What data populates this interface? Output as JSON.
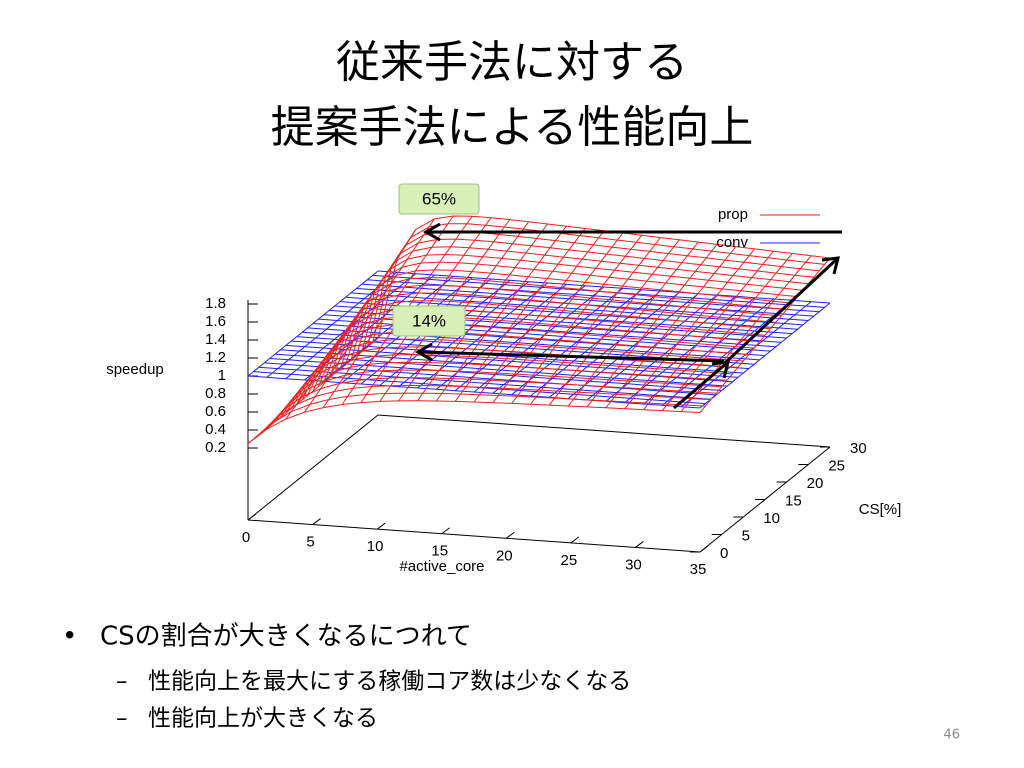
{
  "title": [
    "従来手法に対する",
    "提案手法による性能向上"
  ],
  "plot": {
    "zlabel": "speedup",
    "xlabel": "#active_core",
    "ylabel": "CS[%]",
    "zticks": [
      1.8,
      1.6,
      1.4,
      1.2,
      1,
      0.8,
      0.6,
      0.4,
      0.2
    ],
    "xticks": [
      0,
      5,
      10,
      15,
      20,
      25,
      30,
      35
    ],
    "yticks": [
      0,
      5,
      10,
      15,
      20,
      25,
      30
    ],
    "legend": [
      "prop",
      "conv"
    ],
    "callouts": [
      "65%",
      "14%"
    ]
  },
  "bullets": {
    "text": "CSの割合が大きくなるにつれて",
    "sub": [
      "性能向上を最大にする稼働コア数は少なくなる",
      "性能向上が大きくなる"
    ]
  },
  "page_number": "46"
}
